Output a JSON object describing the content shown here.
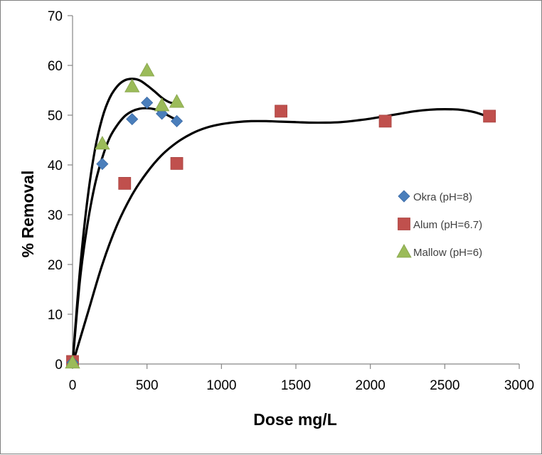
{
  "chart_data": {
    "type": "scatter",
    "xlabel": "Dose mg/L",
    "ylabel": "% Removal",
    "xlim": [
      0,
      3000
    ],
    "ylim": [
      0,
      70
    ],
    "xticks": [
      0,
      500,
      1000,
      1500,
      2000,
      2500,
      3000
    ],
    "yticks": [
      0,
      10,
      20,
      30,
      40,
      50,
      60,
      70
    ],
    "grid": false,
    "legend_position": "right",
    "series": [
      {
        "name": "Okra (pH=8)",
        "marker": "diamond",
        "color": "#4a7ebb",
        "points": [
          [
            0,
            0.3
          ],
          [
            200,
            40.2
          ],
          [
            400,
            49.2
          ],
          [
            500,
            52.5
          ],
          [
            600,
            50.3
          ],
          [
            700,
            48.8
          ]
        ],
        "trend": [
          [
            0,
            0
          ],
          [
            50,
            17
          ],
          [
            100,
            28
          ],
          [
            150,
            36
          ],
          [
            200,
            41.5
          ],
          [
            250,
            45.5
          ],
          [
            300,
            48
          ],
          [
            350,
            49.8
          ],
          [
            400,
            50.8
          ],
          [
            450,
            51.3
          ],
          [
            500,
            51.4
          ],
          [
            550,
            51.2
          ],
          [
            600,
            50.6
          ],
          [
            650,
            49.8
          ],
          [
            700,
            49
          ]
        ]
      },
      {
        "name": "Alum (pH=6.7)",
        "marker": "square",
        "color": "#c0504d",
        "points": [
          [
            0,
            0.5
          ],
          [
            350,
            36.3
          ],
          [
            700,
            40.3
          ],
          [
            1400,
            50.8
          ],
          [
            2100,
            48.8
          ],
          [
            2800,
            49.8
          ]
        ],
        "trend": [
          [
            0,
            0
          ],
          [
            100,
            10
          ],
          [
            200,
            20
          ],
          [
            300,
            28
          ],
          [
            400,
            34
          ],
          [
            500,
            38.5
          ],
          [
            600,
            42
          ],
          [
            700,
            44.5
          ],
          [
            800,
            46.3
          ],
          [
            900,
            47.5
          ],
          [
            1000,
            48.2
          ],
          [
            1100,
            48.6
          ],
          [
            1200,
            48.8
          ],
          [
            1300,
            48.8
          ],
          [
            1400,
            48.7
          ],
          [
            1500,
            48.6
          ],
          [
            1600,
            48.5
          ],
          [
            1700,
            48.5
          ],
          [
            1800,
            48.6
          ],
          [
            1900,
            48.9
          ],
          [
            2000,
            49.3
          ],
          [
            2100,
            49.8
          ],
          [
            2200,
            50.3
          ],
          [
            2300,
            50.8
          ],
          [
            2400,
            51.1
          ],
          [
            2500,
            51.2
          ],
          [
            2600,
            51.1
          ],
          [
            2700,
            50.6
          ],
          [
            2800,
            49.6
          ]
        ]
      },
      {
        "name": "Mallow (pH=6)",
        "marker": "triangle",
        "color": "#9bbb59",
        "points": [
          [
            0,
            0.3
          ],
          [
            200,
            44.3
          ],
          [
            400,
            55.8
          ],
          [
            500,
            59.0
          ],
          [
            600,
            52.0
          ],
          [
            700,
            52.7
          ]
        ],
        "trend": [
          [
            0,
            0
          ],
          [
            50,
            19
          ],
          [
            100,
            33
          ],
          [
            150,
            43
          ],
          [
            200,
            49.5
          ],
          [
            250,
            53.5
          ],
          [
            300,
            55.8
          ],
          [
            350,
            57
          ],
          [
            400,
            57.3
          ],
          [
            450,
            57
          ],
          [
            500,
            56
          ],
          [
            550,
            54.8
          ],
          [
            600,
            53.5
          ],
          [
            650,
            52.6
          ],
          [
            700,
            52.3
          ]
        ]
      }
    ]
  }
}
